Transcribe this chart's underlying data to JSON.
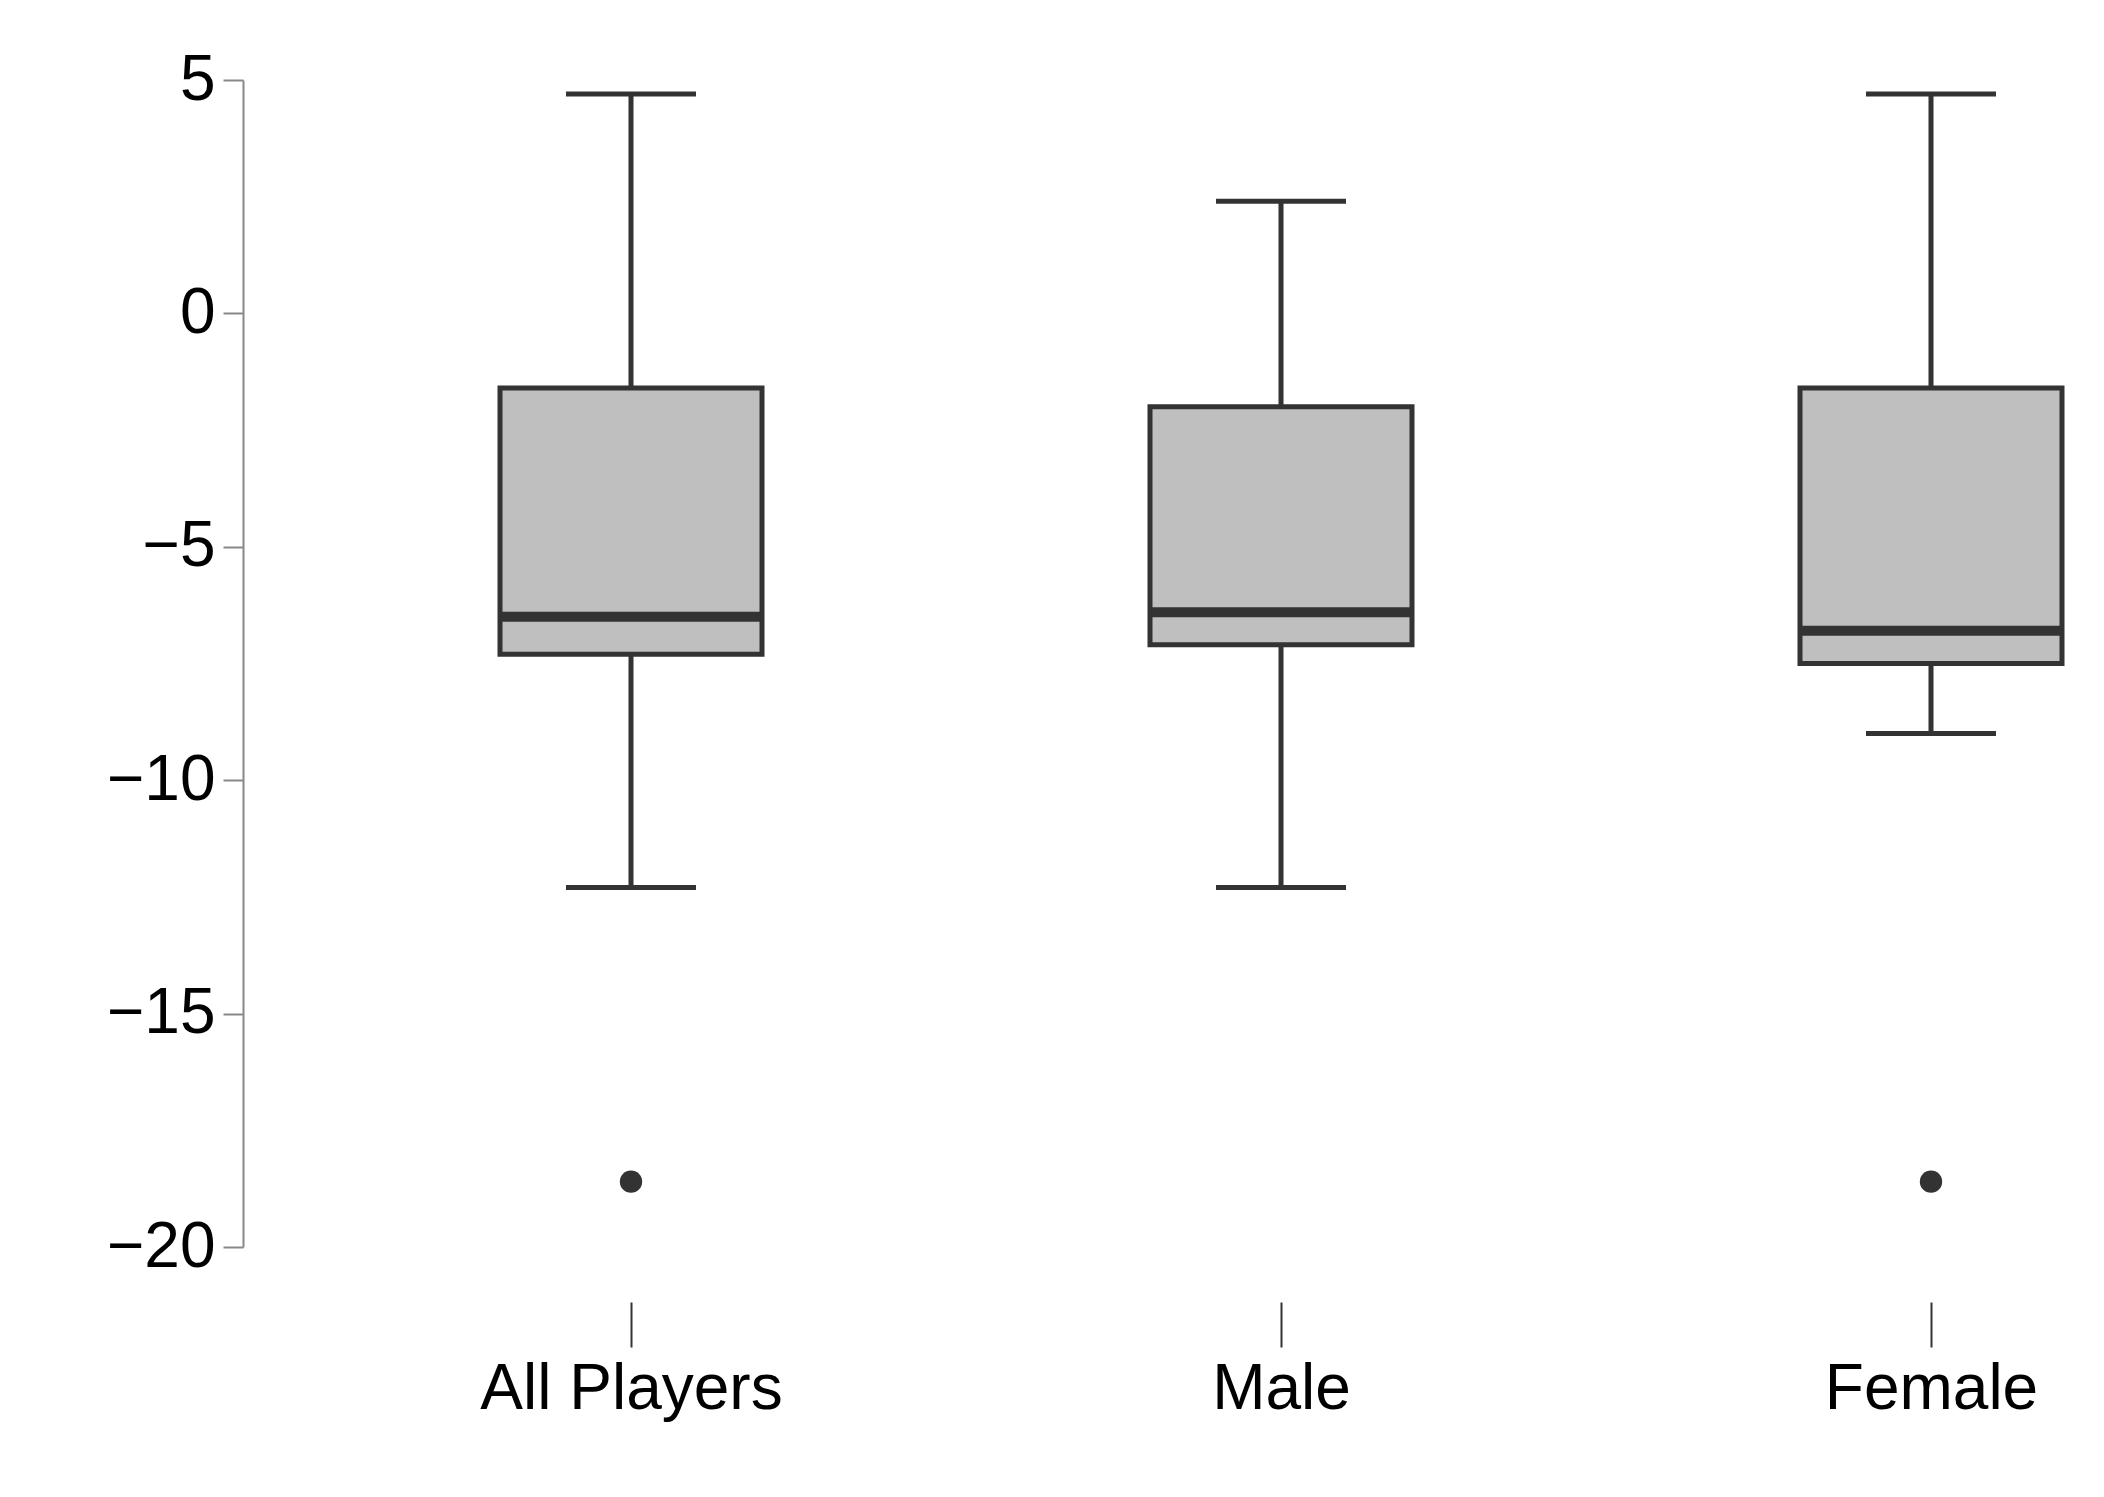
{
  "chart_data": {
    "type": "box",
    "categories": [
      "All Players",
      "Male",
      "Female"
    ],
    "ylim": [
      -20,
      5
    ],
    "yticks": [
      -20,
      -15,
      -10,
      -5,
      0,
      5
    ],
    "grid": false,
    "series": [
      {
        "color": "#bfbfbf",
        "boxes": [
          {
            "low": -12.3,
            "q1": -7.3,
            "median": -6.5,
            "q3": -1.6,
            "high": 4.7,
            "outliers": [
              -18.6
            ]
          },
          {
            "low": -12.3,
            "q1": -7.1,
            "median": -6.4,
            "q3": -2.0,
            "high": 2.4
          },
          {
            "low": -9.0,
            "q1": -7.5,
            "median": -6.8,
            "q3": -1.6,
            "high": 4.7,
            "outliers": [
              -18.6
            ]
          }
        ]
      }
    ]
  }
}
